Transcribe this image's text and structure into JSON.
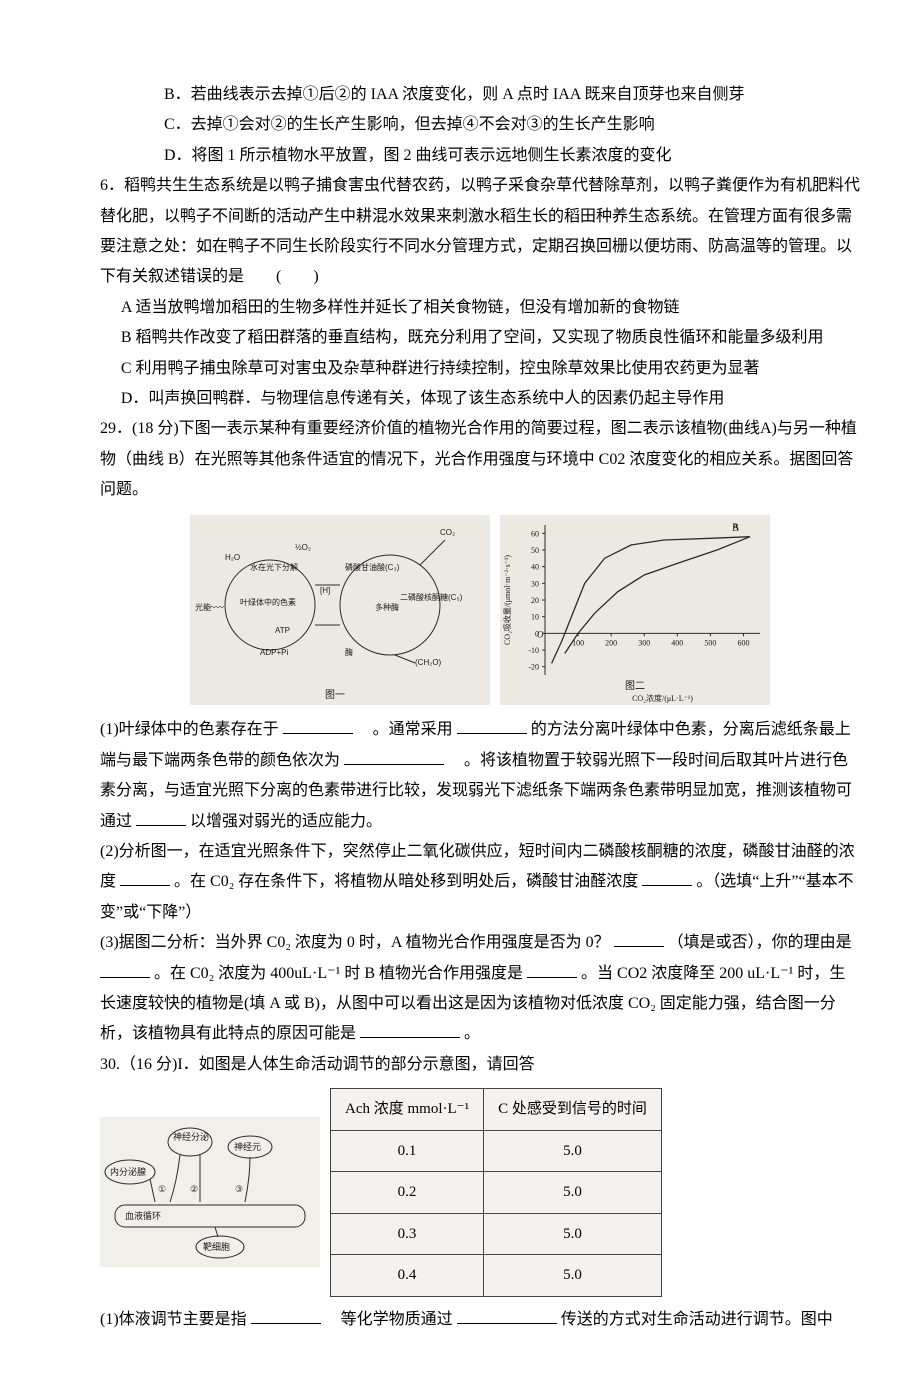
{
  "q5": {
    "optB": "B．若曲线表示去掉①后②的 IAA 浓度变化，则 A 点时 IAA 既来自顶芽也来自侧芽",
    "optC": "C．去掉①会对②的生长产生影响，但去掉④不会对③的生长产生影响",
    "optD": "D．将图 1 所示植物水平放置，图 2 曲线可表示远地侧生长素浓度的变化"
  },
  "q6": {
    "stem1": "6．稻鸭共生生态系统是以鸭子捕食害虫代替农药，以鸭子采食杂草代替除草剂，以鸭子粪便作为有机肥料代替化肥，以鸭子不间断的活动产生中耕混水效果来刺激水稻生长的稻田种养生态系统。在管理方面有很多需要注意之处：如在鸭子不同生长阶段实行不同水分管理方式，定期召换回栅以便坊雨、防高温等的管理。以下有关叙述错误的是　　(　　)",
    "optA": "A 适当放鸭增加稻田的生物多样性并延长了相关食物链，但没有增加新的食物链",
    "optB": "B 稻鸭共作改变了稻田群落的垂直结构，既充分利用了空间，又实现了物质良性循环和能量多级利用",
    "optC": "C 利用鸭子捕虫除草可对害虫及杂草种群进行持续控制，控虫除草效果比使用农药更为显著",
    "optD": "D．叫声换回鸭群．与物理信息传递有关，体现了该生态系统中人的因素仍起主导作用"
  },
  "q29": {
    "stem": "29．(18 分)下图一表示某种有重要经济价值的植物光合作用的简要过程，图二表示该植物(曲线A)与另一种植物（曲线 B）在光照等其他条件适宜的情况下，光合作用强度与环境中 C02 浓度变化的相应关系。据图回答问题。",
    "fig1": {
      "labels": {
        "co2": "CO₂",
        "h2o": "H₂O",
        "o2_half": "½O₂",
        "water_split": "水在光下分解",
        "pga": "磷酸甘油酸(C₃)",
        "rubp": "二磷酸核酮糖(C₅)",
        "multi_enzyme": "多种酶",
        "light": "光能",
        "pigment": "叶绿体中的色素",
        "h": "[H]",
        "atp": "ATP",
        "adp": "ADP+Pi",
        "enzyme_path": "酶",
        "ch2o": "(CH₂O)",
        "caption": "图一"
      },
      "colors": {
        "bg": "#ece9e3",
        "line": "#2b2b2b",
        "text": "#1a1a1a"
      }
    },
    "fig2": {
      "type": "line",
      "bg": "#ece9e3",
      "axis_color": "#2b2b2b",
      "text_color": "#1a1a1a",
      "xlabel": "CO₂浓度/(μL·L⁻¹)",
      "ylabel": "CO₂吸收量/(μmol·m⁻²·s⁻¹)",
      "xlim": [
        0,
        650
      ],
      "ylim": [
        -25,
        65
      ],
      "xticks": [
        100,
        200,
        300,
        400,
        500,
        600
      ],
      "yticks": [
        -20,
        -10,
        0,
        10,
        20,
        30,
        40,
        50,
        60
      ],
      "series": [
        {
          "name": "A",
          "color": "#2b2b2b",
          "points": [
            [
              20,
              -18
            ],
            [
              50,
              -5
            ],
            [
              80,
              10
            ],
            [
              120,
              30
            ],
            [
              180,
              45
            ],
            [
              260,
              53
            ],
            [
              360,
              56
            ],
            [
              500,
              57
            ],
            [
              620,
              58
            ]
          ]
        },
        {
          "name": "B",
          "color": "#2b2b2b",
          "points": [
            [
              60,
              -12
            ],
            [
              100,
              0
            ],
            [
              150,
              12
            ],
            [
              220,
              25
            ],
            [
              300,
              35
            ],
            [
              400,
              42
            ],
            [
              520,
              50
            ],
            [
              620,
              58
            ]
          ]
        }
      ],
      "caption": "图二"
    },
    "p1a": "(1)叶绿体中的色素存在于",
    "p1b": "　。通常采用",
    "p1c": "的方法分离叶绿体中色素，分离后滤纸条最上端与最下端两条色带的颜色依次为",
    "p1d": "　。将该植物置于较弱光照下一段时间后取其叶片进行色素分离，与适宜光照下分离的色素带进行比较，发现弱光下滤纸条下端两条色素带明显加宽，推测该植物可通过",
    "p1e": "以增强对弱光的适应能力。",
    "p2a": "(2)分析图一，在适宜光照条件下，突然停止二氧化碳供应，短时间内二磷酸核酮糖的浓度，磷酸甘油醛的浓度",
    "p2b": "。在 C0₂ 存在条件下，将植物从暗处移到明处后，磷酸甘油醛浓度",
    "p2c": "。（选填“上升”“基本不变”或“下降”）",
    "p3a": "(3)据图二分析：当外界 C0₂ 浓度为 0 时，A 植物光合作用强度是否为 0？",
    "p3b": "（填是或否），你的理由是",
    "p3c": "。在 C0₂ 浓度为 400uL·L⁻¹ 时 B 植物光合作用强度是",
    "p3d": "。当 CO2 浓度降至 200 uL·L⁻¹ 时，生长速度较快的植物是(填 A 或 B)，从图中可以看出这是因为该植物对低浓度 CO₂ 固定能力强，结合图一分析，该植物具有此特点的原因可能是",
    "p3e": "。"
  },
  "q30": {
    "stem": "30.（16 分)I．如图是人体生命活动调节的部分示意图，请回答",
    "fig": {
      "labels": {
        "endo": "内分泌腺",
        "neuron_secrete": "神经分泌",
        "neuron": "神经元",
        "n1": "①",
        "n2": "②",
        "n3": "③",
        "blood": "血液循环",
        "target": "靶细胞"
      },
      "bg": "#f1efe9",
      "line": "#2b2b2b"
    },
    "table": {
      "bg": "#f4f2ee",
      "border": "#444444",
      "header": [
        "Ach 浓度 mmol·L⁻¹",
        "C 处感受到信号的时间"
      ],
      "rows": [
        [
          "0.1",
          "5.0"
        ],
        [
          "0.2",
          "5.0"
        ],
        [
          "0.3",
          "5.0"
        ],
        [
          "0.4",
          "5.0"
        ]
      ]
    },
    "p1a": "(1)体液调节主要是指",
    "p1b": "　等化学物质通过",
    "p1c": "传送的方式对生命活动进行调节。图中"
  }
}
